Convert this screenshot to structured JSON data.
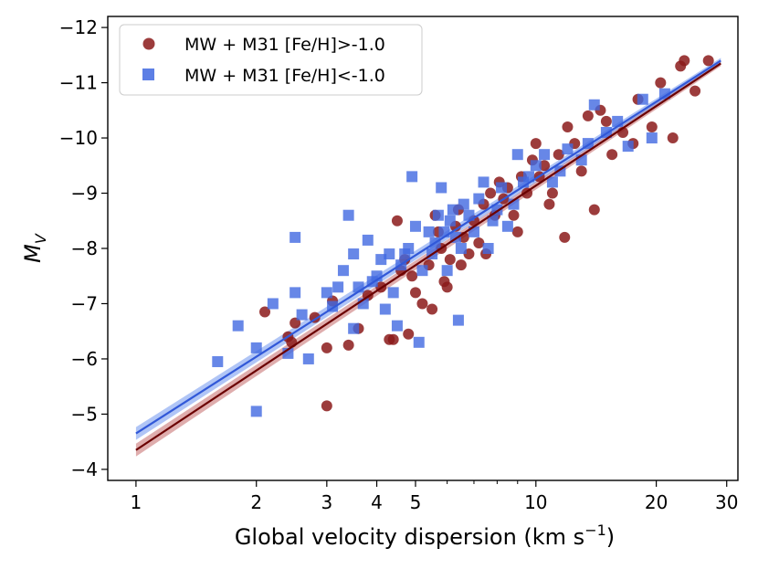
{
  "chart_data": {
    "type": "scatter",
    "xlabel": "Global velocity dispersion (km s",
    "xlabel_sup": "−1",
    "xlabel_close": ")",
    "ylabel": "M",
    "ylabel_sub": "V",
    "x_scale": "log",
    "xlim": [
      0.85,
      32
    ],
    "ylim": [
      -3.8,
      -12.2
    ],
    "y_inverted": true,
    "x_ticks": [
      1,
      2,
      3,
      4,
      5,
      10,
      20,
      30
    ],
    "x_tick_labels": [
      "1",
      "2",
      "3",
      "4",
      "5",
      "10",
      "20",
      "30"
    ],
    "y_ticks": [
      -12,
      -11,
      -10,
      -9,
      -8,
      -7,
      -6,
      -5,
      -4
    ],
    "y_tick_labels": [
      "−12",
      "−11",
      "−10",
      "−9",
      "−8",
      "−7",
      "−6",
      "−5",
      "−4"
    ],
    "legend_position": "top-left",
    "series": [
      {
        "name": "MW + M31 [Fe/H]>-1.0",
        "marker": "circle",
        "color": "#8b1a1a",
        "fit": {
          "x": [
            1,
            29
          ],
          "y": [
            -4.35,
            -11.35
          ]
        },
        "points": [
          [
            2.1,
            -6.85
          ],
          [
            2.4,
            -6.4
          ],
          [
            2.45,
            -6.3
          ],
          [
            2.5,
            -6.65
          ],
          [
            2.8,
            -6.75
          ],
          [
            3.0,
            -6.2
          ],
          [
            3.0,
            -5.15
          ],
          [
            3.1,
            -7.05
          ],
          [
            3.4,
            -6.25
          ],
          [
            3.6,
            -6.55
          ],
          [
            3.8,
            -7.15
          ],
          [
            4.1,
            -7.3
          ],
          [
            4.3,
            -6.35
          ],
          [
            4.4,
            -6.35
          ],
          [
            4.5,
            -8.5
          ],
          [
            4.6,
            -7.6
          ],
          [
            4.7,
            -7.8
          ],
          [
            4.8,
            -6.45
          ],
          [
            4.9,
            -7.5
          ],
          [
            5.0,
            -7.2
          ],
          [
            5.2,
            -7.0
          ],
          [
            5.4,
            -7.7
          ],
          [
            5.5,
            -6.9
          ],
          [
            5.6,
            -8.6
          ],
          [
            5.7,
            -8.3
          ],
          [
            5.8,
            -8.0
          ],
          [
            5.9,
            -7.4
          ],
          [
            6.0,
            -7.3
          ],
          [
            6.1,
            -7.8
          ],
          [
            6.3,
            -8.4
          ],
          [
            6.4,
            -8.7
          ],
          [
            6.5,
            -7.7
          ],
          [
            6.6,
            -8.2
          ],
          [
            6.8,
            -7.9
          ],
          [
            7.0,
            -8.5
          ],
          [
            7.2,
            -8.1
          ],
          [
            7.4,
            -8.8
          ],
          [
            7.5,
            -7.9
          ],
          [
            7.7,
            -9.0
          ],
          [
            7.9,
            -8.6
          ],
          [
            8.1,
            -9.2
          ],
          [
            8.3,
            -8.9
          ],
          [
            8.5,
            -9.1
          ],
          [
            8.8,
            -8.6
          ],
          [
            9.0,
            -8.3
          ],
          [
            9.2,
            -9.3
          ],
          [
            9.5,
            -9.0
          ],
          [
            9.8,
            -9.6
          ],
          [
            10.0,
            -9.9
          ],
          [
            10.2,
            -9.3
          ],
          [
            10.5,
            -9.5
          ],
          [
            10.8,
            -8.8
          ],
          [
            11.0,
            -9.0
          ],
          [
            11.4,
            -9.7
          ],
          [
            11.8,
            -8.2
          ],
          [
            12.0,
            -10.2
          ],
          [
            12.5,
            -9.9
          ],
          [
            13.0,
            -9.4
          ],
          [
            13.5,
            -10.4
          ],
          [
            14.0,
            -8.7
          ],
          [
            14.5,
            -10.5
          ],
          [
            15.0,
            -10.3
          ],
          [
            15.5,
            -9.7
          ],
          [
            16.5,
            -10.1
          ],
          [
            17.5,
            -9.9
          ],
          [
            18.0,
            -10.7
          ],
          [
            19.5,
            -10.2
          ],
          [
            20.5,
            -11.0
          ],
          [
            22.0,
            -10.0
          ],
          [
            23.0,
            -11.3
          ],
          [
            23.5,
            -11.4
          ],
          [
            25.0,
            -10.85
          ],
          [
            27.0,
            -11.4
          ]
        ]
      },
      {
        "name": "MW + M31 [Fe/H]<-1.0",
        "marker": "square",
        "color": "#4169e1",
        "fit": {
          "x": [
            1,
            29
          ],
          "y": [
            -4.65,
            -11.4
          ]
        },
        "points": [
          [
            1.6,
            -5.95
          ],
          [
            1.8,
            -6.6
          ],
          [
            2.0,
            -6.2
          ],
          [
            2.0,
            -5.05
          ],
          [
            2.2,
            -7.0
          ],
          [
            2.4,
            -6.1
          ],
          [
            2.5,
            -7.2
          ],
          [
            2.5,
            -8.2
          ],
          [
            2.6,
            -6.8
          ],
          [
            2.7,
            -6.0
          ],
          [
            3.0,
            -7.2
          ],
          [
            3.1,
            -6.95
          ],
          [
            3.2,
            -7.3
          ],
          [
            3.3,
            -7.6
          ],
          [
            3.4,
            -8.6
          ],
          [
            3.5,
            -7.9
          ],
          [
            3.5,
            -6.55
          ],
          [
            3.6,
            -7.3
          ],
          [
            3.7,
            -7.0
          ],
          [
            3.8,
            -8.15
          ],
          [
            3.9,
            -7.4
          ],
          [
            4.0,
            -7.5
          ],
          [
            4.1,
            -7.8
          ],
          [
            4.2,
            -6.9
          ],
          [
            4.3,
            -7.9
          ],
          [
            4.4,
            -7.2
          ],
          [
            4.5,
            -6.6
          ],
          [
            4.6,
            -7.7
          ],
          [
            4.7,
            -7.9
          ],
          [
            4.8,
            -8.0
          ],
          [
            4.9,
            -9.3
          ],
          [
            5.0,
            -8.4
          ],
          [
            5.1,
            -6.3
          ],
          [
            5.2,
            -7.6
          ],
          [
            5.4,
            -8.3
          ],
          [
            5.5,
            -7.9
          ],
          [
            5.6,
            -8.1
          ],
          [
            5.7,
            -8.6
          ],
          [
            5.8,
            -9.1
          ],
          [
            5.9,
            -8.3
          ],
          [
            6.0,
            -7.6
          ],
          [
            6.1,
            -8.5
          ],
          [
            6.2,
            -8.7
          ],
          [
            6.3,
            -8.2
          ],
          [
            6.4,
            -6.7
          ],
          [
            6.5,
            -8.0
          ],
          [
            6.6,
            -8.8
          ],
          [
            6.8,
            -8.6
          ],
          [
            7.0,
            -8.3
          ],
          [
            7.2,
            -8.9
          ],
          [
            7.4,
            -9.2
          ],
          [
            7.6,
            -8.0
          ],
          [
            7.8,
            -8.5
          ],
          [
            8.0,
            -8.7
          ],
          [
            8.2,
            -9.1
          ],
          [
            8.5,
            -8.4
          ],
          [
            8.8,
            -8.8
          ],
          [
            9.0,
            -9.7
          ],
          [
            9.3,
            -9.2
          ],
          [
            9.6,
            -9.3
          ],
          [
            10.0,
            -9.5
          ],
          [
            10.5,
            -9.7
          ],
          [
            11.0,
            -9.2
          ],
          [
            11.5,
            -9.4
          ],
          [
            12.0,
            -9.8
          ],
          [
            13.0,
            -9.6
          ],
          [
            13.5,
            -9.9
          ],
          [
            14.0,
            -10.6
          ],
          [
            15.0,
            -10.1
          ],
          [
            16.0,
            -10.3
          ],
          [
            17.0,
            -9.85
          ],
          [
            18.5,
            -10.7
          ],
          [
            19.5,
            -10.0
          ],
          [
            21.0,
            -10.8
          ]
        ]
      }
    ]
  }
}
